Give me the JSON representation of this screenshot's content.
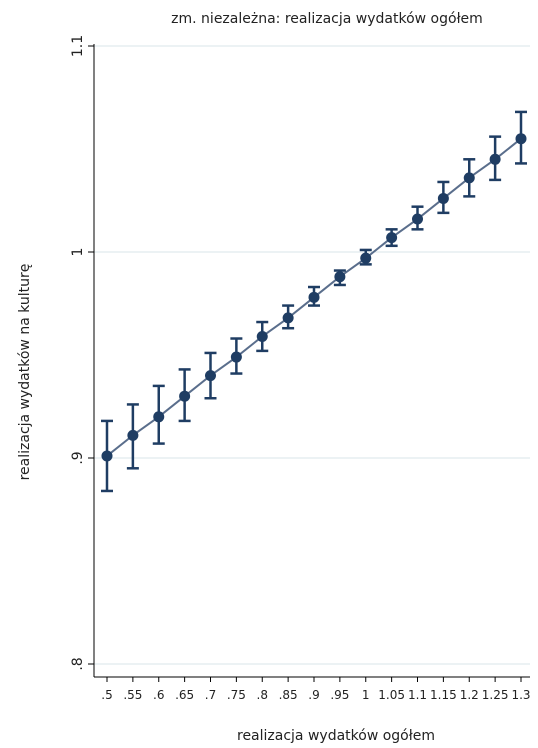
{
  "chart_data": {
    "type": "line",
    "title": "zm. niezależna: realizacja wydatków ogółem",
    "xlabel": "realizacja wydatków ogółem",
    "ylabel": "realizacja wydatków na kulturę",
    "x_tick_labels": [
      ".5",
      ".55",
      ".6",
      ".65",
      ".7",
      ".75",
      ".8",
      ".85",
      ".9",
      ".95",
      "1",
      "1.05",
      "1.1",
      "1.15",
      "1.2",
      "1.25",
      "1.3"
    ],
    "x": [
      0.5,
      0.55,
      0.6,
      0.65,
      0.7,
      0.75,
      0.8,
      0.85,
      0.9,
      0.95,
      1.0,
      1.05,
      1.1,
      1.15,
      1.2,
      1.25,
      1.3
    ],
    "y": [
      0.901,
      0.911,
      0.92,
      0.93,
      0.94,
      0.949,
      0.959,
      0.968,
      0.978,
      0.988,
      0.997,
      1.007,
      1.016,
      1.026,
      1.036,
      1.045,
      1.055
    ],
    "ci_low": [
      0.884,
      0.895,
      0.907,
      0.918,
      0.929,
      0.941,
      0.952,
      0.963,
      0.974,
      0.984,
      0.994,
      1.003,
      1.011,
      1.019,
      1.027,
      1.035,
      1.043
    ],
    "ci_high": [
      0.918,
      0.926,
      0.935,
      0.943,
      0.951,
      0.958,
      0.966,
      0.974,
      0.983,
      0.991,
      1.001,
      1.011,
      1.022,
      1.034,
      1.045,
      1.056,
      1.068
    ],
    "y_ticks": [
      0.8,
      0.9,
      1.0,
      1.1
    ],
    "y_tick_labels": [
      ".8",
      ".9",
      "1",
      "1.1"
    ],
    "ylim": [
      0.8,
      1.1
    ],
    "xlim": [
      0.5,
      1.3
    ],
    "grid": "horizontal",
    "colors": {
      "marker": "#1f3d63",
      "line": "#5a6e8c",
      "grid": "#d9e4ea",
      "axis": "#000000"
    }
  }
}
